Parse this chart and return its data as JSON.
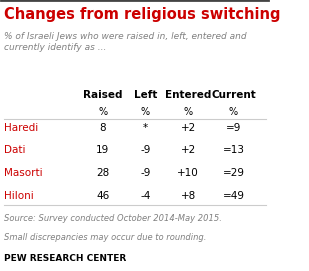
{
  "title": "Changes from religious switching",
  "subtitle": "% of Israeli Jews who were raised in, left, entered and\ncurrently identify as ...",
  "col_headers": [
    "Raised",
    "Left",
    "Entered",
    "Current"
  ],
  "col_subheaders": [
    "%",
    "%",
    "%",
    "%"
  ],
  "row_labels": [
    "Haredi",
    "Dati",
    "Masorti",
    "Hiloni"
  ],
  "table_data": [
    [
      "8",
      "*",
      "+2",
      "=9"
    ],
    [
      "19",
      "-9",
      "+2",
      "=13"
    ],
    [
      "28",
      "-9",
      "+10",
      "=29"
    ],
    [
      "46",
      "-4",
      "+8",
      "=49"
    ]
  ],
  "source_text": "Source: Survey conducted October 2014-May 2015.",
  "note_text": "Small discrepancies may occur due to rounding.",
  "footer_text": "PEW RESEARCH CENTER",
  "title_color": "#cc0000",
  "subtitle_color": "#808080",
  "header_color": "#000000",
  "row_label_color": "#cc0000",
  "data_color": "#000000",
  "source_color": "#808080",
  "footer_color": "#000000",
  "background_color": "#ffffff",
  "border_color": "#cccccc",
  "top_border_color": "#444444"
}
